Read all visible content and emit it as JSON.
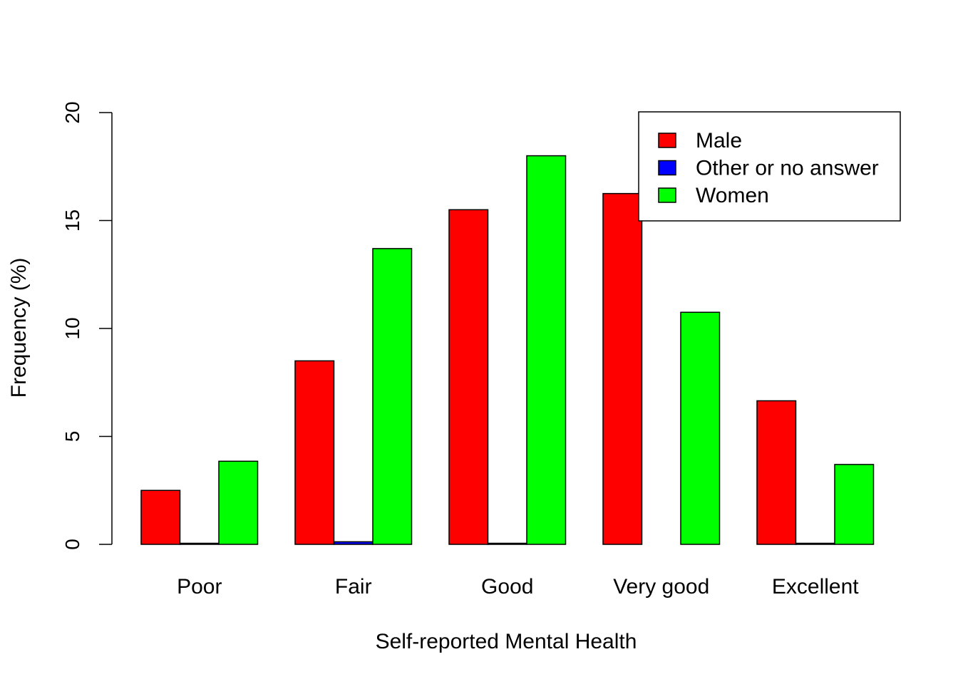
{
  "chart_data": {
    "type": "bar",
    "title": "",
    "xlabel": "Self-reported Mental Health",
    "ylabel": "Frequency (%)",
    "categories": [
      "Poor",
      "Fair",
      "Good",
      "Very good",
      "Excellent"
    ],
    "ylim": [
      0,
      20
    ],
    "yticks": [
      "0",
      "5",
      "10",
      "15",
      "20"
    ],
    "grid": false,
    "legend_position": "top-right",
    "series": [
      {
        "name": "Male",
        "color": "#ff0000",
        "values": [
          2.5,
          8.5,
          15.5,
          16.25,
          6.65
        ]
      },
      {
        "name": "Other or no answer",
        "color": "#0000ff",
        "values": [
          0.05,
          0.12,
          0.05,
          0.0,
          0.05
        ]
      },
      {
        "name": "Women",
        "color": "#00ff00",
        "values": [
          3.85,
          13.7,
          18.0,
          10.75,
          3.7
        ]
      }
    ]
  }
}
